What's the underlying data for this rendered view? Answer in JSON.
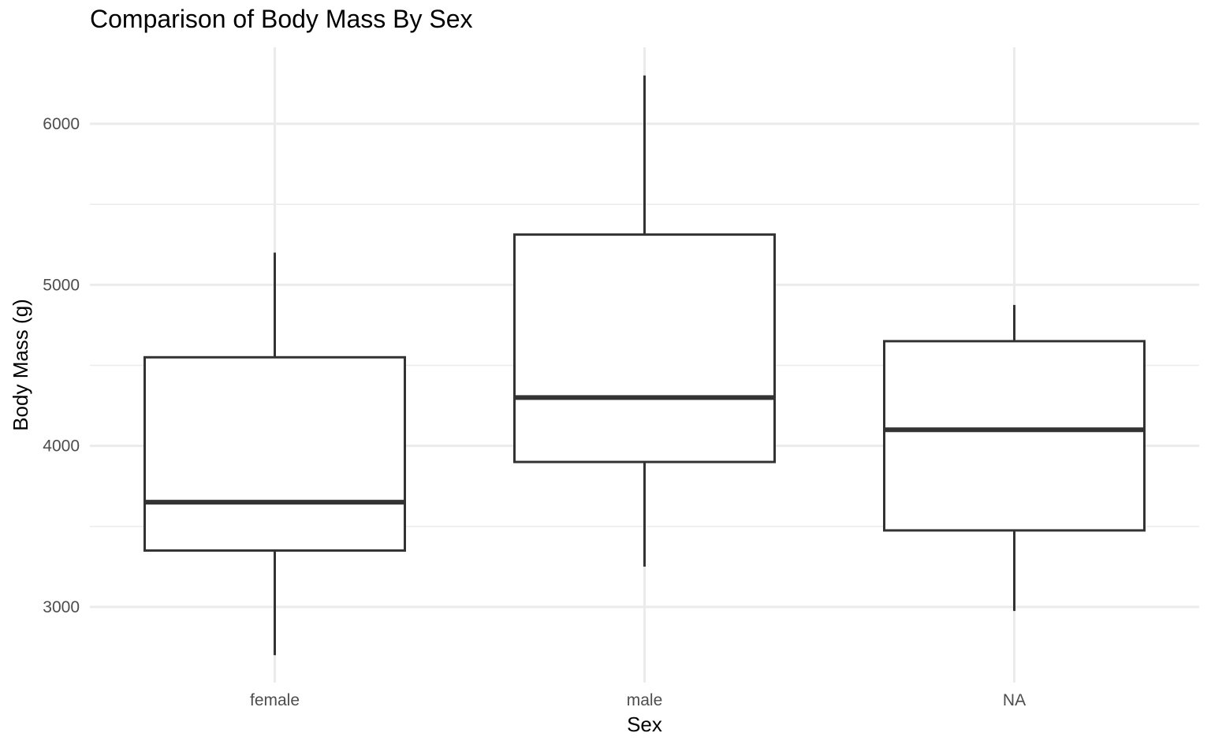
{
  "chart_data": {
    "type": "boxplot",
    "title": "Comparison of Body Mass By Sex",
    "xlabel": "Sex",
    "ylabel": "Body Mass (g)",
    "categories": [
      "female",
      "male",
      "NA"
    ],
    "boxes": [
      {
        "category": "female",
        "min": 2700,
        "q1": 3350,
        "median": 3650,
        "q3": 4550,
        "max": 5200
      },
      {
        "category": "male",
        "min": 3250,
        "q1": 3900,
        "median": 4300,
        "q3": 5312,
        "max": 6300
      },
      {
        "category": "NA",
        "min": 2975,
        "q1": 3475,
        "median": 4100,
        "q3": 4650,
        "max": 4875
      }
    ],
    "yticks": [
      3000,
      4000,
      5000,
      6000
    ],
    "ylim": [
      2530,
      6475
    ],
    "grid": true,
    "legend": "none"
  }
}
